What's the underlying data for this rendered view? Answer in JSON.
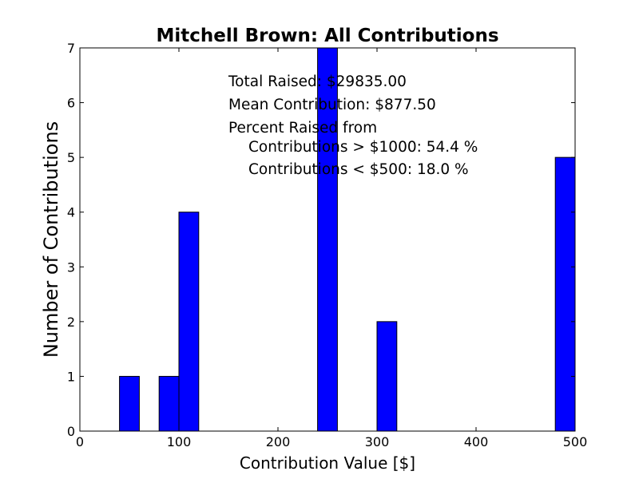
{
  "chart_data": {
    "type": "bar",
    "title": "Mitchell Brown: All Contributions",
    "xlabel": "Contribution Value [$]",
    "ylabel": "Number of Contributions",
    "xlim": [
      0,
      500
    ],
    "ylim": [
      0,
      7
    ],
    "xticks": [
      0,
      100,
      200,
      300,
      400,
      500
    ],
    "yticks": [
      0,
      1,
      2,
      3,
      4,
      5,
      6,
      7
    ],
    "bar_color": "#0000ff",
    "grid": false,
    "bins": [
      {
        "x0": 0,
        "x1": 20,
        "count": 0
      },
      {
        "x0": 40,
        "x1": 60,
        "count": 1
      },
      {
        "x0": 80,
        "x1": 100,
        "count": 1
      },
      {
        "x0": 100,
        "x1": 120,
        "count": 4
      },
      {
        "x0": 240,
        "x1": 260,
        "count": 7
      },
      {
        "x0": 300,
        "x1": 320,
        "count": 2
      },
      {
        "x0": 480,
        "x1": 500,
        "count": 5
      }
    ],
    "annotations": {
      "total": "Total Raised: $29835.00",
      "mean": "Mean Contribution: $877.50",
      "percent_header": "Percent Raised from",
      "over_1000": "Contributions > $1000: 54.4 %",
      "under_500": "Contributions < $500: 18.0 %"
    }
  }
}
